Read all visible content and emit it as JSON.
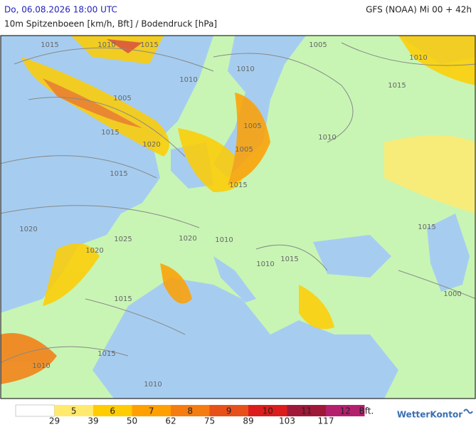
{
  "header": {
    "date": "Do, 06.08.2026 18:00 UTC",
    "model": "GFS (NOAA) Mi 00 + 42h",
    "subtitle": "10m Spitzenboeen [km/h, Bft] / Bodendruck [hPa]"
  },
  "isobar_labels": [
    "1015",
    "1010",
    "1015",
    "1010",
    "1005",
    "1015",
    "1020",
    "1015",
    "1020",
    "1025",
    "1020",
    "1010",
    "1015",
    "1005",
    "1005",
    "1010",
    "1005",
    "1010",
    "1015",
    "1010",
    "1015",
    "1015",
    "1010",
    "1020",
    "1015",
    "1015",
    "1010",
    "1010",
    "1000"
  ],
  "legend": {
    "base_color": "#ffffff",
    "unit": "Bft.",
    "levels": [
      {
        "bft": "5",
        "kmh": "29",
        "color": "#ffea6e"
      },
      {
        "bft": "6",
        "kmh": "39",
        "color": "#ffcc00"
      },
      {
        "bft": "7",
        "kmh": "50",
        "color": "#ffa000"
      },
      {
        "bft": "8",
        "kmh": "62",
        "color": "#f57c10"
      },
      {
        "bft": "9",
        "kmh": "75",
        "color": "#e8501a"
      },
      {
        "bft": "10",
        "kmh": "89",
        "color": "#dc1c1c"
      },
      {
        "bft": "11",
        "kmh": "103",
        "color": "#a01838"
      },
      {
        "bft": "12",
        "kmh": "117",
        "color": "#b4206e"
      }
    ]
  },
  "brand": "WetterKontor"
}
